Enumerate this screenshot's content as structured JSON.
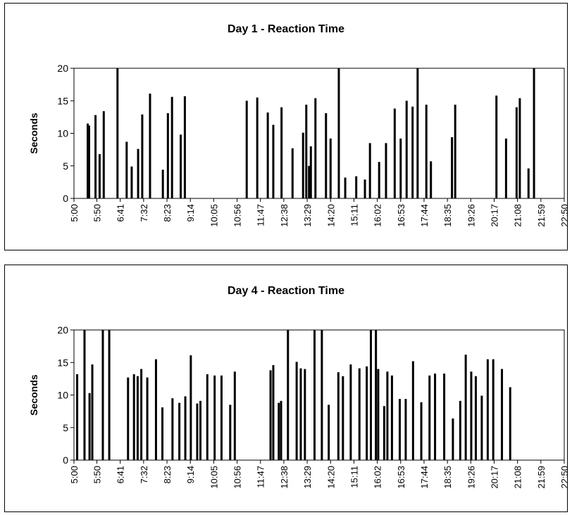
{
  "chart_data": [
    {
      "type": "bar",
      "title": "Day 1 - Reaction Time",
      "xlabel": "",
      "ylabel": "Seconds",
      "ylim": [
        0,
        20
      ],
      "yticks": [
        0,
        5,
        10,
        15,
        20
      ],
      "xlim": [
        "5:00",
        "22:50"
      ],
      "xticks": [
        "5:00",
        "5:50",
        "6:41",
        "7:32",
        "8:23",
        "9:14",
        "10:05",
        "10:56",
        "11:47",
        "12:38",
        "13:29",
        "14:20",
        "15:11",
        "16:02",
        "16:53",
        "17:44",
        "18:35",
        "19:26",
        "20:17",
        "21:08",
        "21:59",
        "22:50"
      ],
      "grid": false,
      "x": [
        "5:30",
        "5:33",
        "5:47",
        "5:56",
        "6:05",
        "6:35",
        "6:55",
        "7:06",
        "7:20",
        "7:29",
        "7:46",
        "8:14",
        "8:25",
        "8:34",
        "8:53",
        "9:02",
        "11:17",
        "11:40",
        "12:03",
        "12:15",
        "12:33",
        "12:57",
        "13:20",
        "13:27",
        "13:33",
        "13:37",
        "13:47",
        "14:10",
        "14:20",
        "14:38",
        "14:52",
        "15:16",
        "15:35",
        "15:46",
        "16:06",
        "16:21",
        "16:40",
        "16:53",
        "17:06",
        "17:19",
        "17:30",
        "17:49",
        "17:59",
        "18:45",
        "18:52",
        "20:22",
        "20:43",
        "21:06",
        "21:13",
        "21:32",
        "21:44",
        "22:01"
      ],
      "values": [
        11.5,
        11.2,
        12.8,
        6.8,
        13.4,
        20,
        8.7,
        4.9,
        7.6,
        12.9,
        16.1,
        4.4,
        13.1,
        15.6,
        9.8,
        15.7,
        15,
        15.5,
        13.2,
        11.3,
        14,
        7.7,
        10.1,
        14.4,
        5,
        8,
        15.4,
        13.1,
        9.2,
        20,
        3.2,
        3.4,
        2.9,
        8.5,
        5.6,
        8.5,
        13.8,
        9.2,
        15,
        14.1,
        20,
        14.4,
        5.7,
        9.4,
        14.4,
        15.8,
        9.2,
        14,
        15.4,
        4.6,
        20,
        0
      ]
    },
    {
      "type": "bar",
      "title": "Day 4 - Reaction Time",
      "xlabel": "",
      "ylabel": "Seconds",
      "ylim": [
        0,
        20
      ],
      "yticks": [
        0,
        5,
        10,
        15,
        20
      ],
      "xlim": [
        "5:00",
        "22:50"
      ],
      "xticks": [
        "5:00",
        "5:50",
        "6:41",
        "7:32",
        "8:23",
        "9:14",
        "10:05",
        "10:56",
        "11:47",
        "12:38",
        "13:29",
        "14:20",
        "15:11",
        "16:02",
        "16:53",
        "17:44",
        "18:35",
        "19:26",
        "20:17",
        "21:08",
        "21:59",
        "22:50"
      ],
      "grid": false,
      "x": [
        "5:07",
        "5:23",
        "5:34",
        "5:40",
        "6:03",
        "6:17",
        "6:58",
        "7:11",
        "7:19",
        "7:27",
        "7:40",
        "7:59",
        "8:13",
        "8:35",
        "8:50",
        "9:03",
        "9:15",
        "9:29",
        "9:36",
        "9:51",
        "10:07",
        "10:22",
        "10:41",
        "10:51",
        "12:09",
        "12:15",
        "12:27",
        "12:32",
        "12:47",
        "13:06",
        "13:15",
        "13:24",
        "13:45",
        "14:01",
        "14:16",
        "14:37",
        "14:47",
        "15:04",
        "15:23",
        "15:39",
        "15:48",
        "15:59",
        "16:04",
        "16:17",
        "16:24",
        "16:34",
        "16:51",
        "17:04",
        "17:20",
        "17:38",
        "17:56",
        "18:08",
        "18:28",
        "18:47",
        "19:03",
        "19:15",
        "19:27",
        "19:37",
        "19:50",
        "20:03",
        "20:15",
        "20:34",
        "20:52",
        "21:08",
        "21:28",
        "21:48"
      ],
      "values": [
        13.2,
        20,
        10.3,
        14.7,
        20,
        20,
        12.7,
        13.2,
        12.9,
        14,
        12.7,
        15.5,
        8.1,
        9.5,
        8.8,
        9.8,
        16.1,
        8.7,
        9.1,
        13.2,
        13,
        13,
        8.5,
        13.6,
        13.8,
        14.6,
        8.8,
        9.1,
        20,
        15.1,
        14.1,
        14,
        20,
        20,
        8.5,
        13.5,
        12.9,
        14.7,
        14.1,
        14.4,
        20,
        20,
        14,
        8.3,
        13.6,
        13,
        9.4,
        9.4,
        15.2,
        8.9,
        13,
        13.3,
        13.3,
        6.4,
        9.1,
        16.2,
        13.6,
        12.9,
        9.9,
        15.5,
        15.5,
        14,
        11.2,
        0,
        0,
        0
      ]
    }
  ]
}
